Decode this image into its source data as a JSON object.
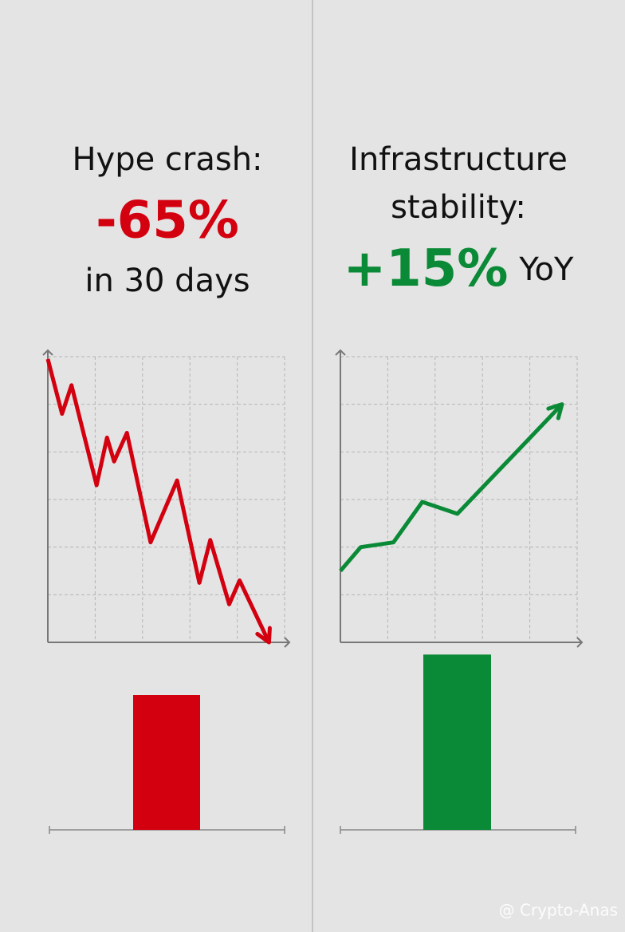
{
  "panels": [
    {
      "title": [
        "Hype crash:"
      ],
      "highlight": "-65%",
      "suffix": "in 30 days",
      "color": "#d3000f",
      "line": {
        "type": "line",
        "x": [
          0,
          0.3,
          0.5,
          1.03,
          1.25,
          1.4,
          1.67,
          2.17,
          2.73,
          3.2,
          3.43,
          3.83,
          4.05,
          4.67
        ],
        "values": [
          5.95,
          4.8,
          5.4,
          3.3,
          4.3,
          3.8,
          4.4,
          2.1,
          3.4,
          1.25,
          2.15,
          0.8,
          1.3,
          0
        ],
        "xlim": [
          0,
          5
        ],
        "ylim": [
          0,
          6
        ]
      },
      "bar": {
        "type": "bar",
        "value": 130,
        "ylim": [
          0,
          200
        ]
      }
    },
    {
      "title": [
        "Infrastructure",
        "stability:"
      ],
      "highlight": "+15%",
      "suffix": "YoY",
      "color": "#0a8a36",
      "line": {
        "type": "line",
        "x": [
          0,
          0.43,
          1.12,
          1.73,
          2.47,
          4.68
        ],
        "values": [
          1.5,
          2.0,
          2.1,
          2.95,
          2.7,
          5.0
        ],
        "xlim": [
          0,
          5
        ],
        "ylim": [
          0,
          6
        ]
      },
      "bar": {
        "type": "bar",
        "value": 169,
        "ylim": [
          0,
          200
        ]
      }
    }
  ],
  "watermark": "@ Crypto-Anas"
}
